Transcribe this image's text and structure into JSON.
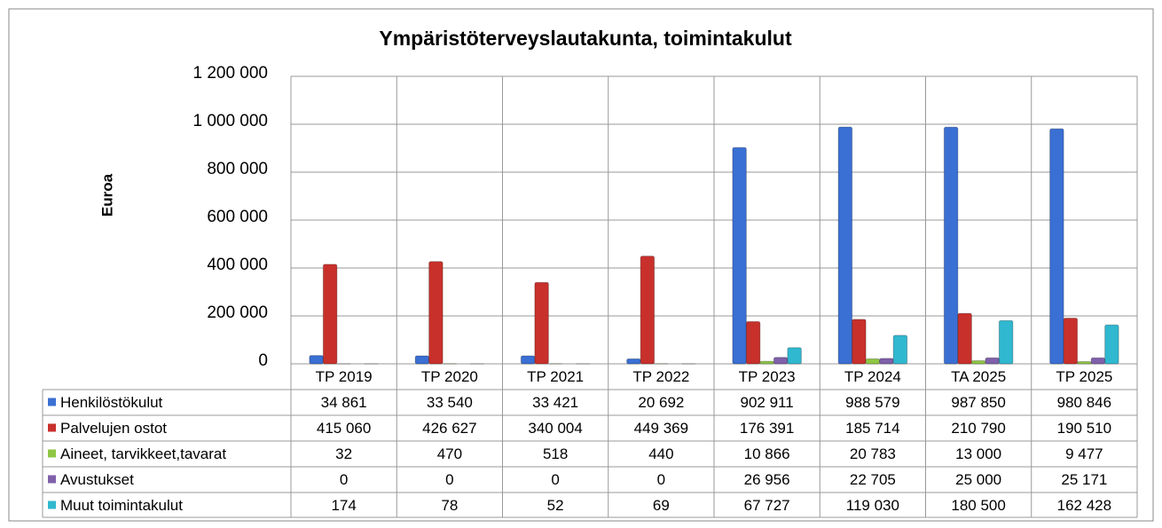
{
  "chart_data": {
    "type": "bar",
    "title": "Ympäristöterveyslautakunta, toimintakulut",
    "y_label": "Euroa",
    "categories": [
      "TP 2019",
      "TP 2020",
      "TP 2021",
      "TP 2022",
      "TP 2023",
      "TP 2024",
      "TA 2025",
      "TP 2025"
    ],
    "series": [
      {
        "name": "Henkilöstökulut",
        "color": "#3a6fd3",
        "values": [
          34861,
          33540,
          33421,
          20692,
          902911,
          988579,
          987850,
          980846
        ],
        "value_labels": [
          "34 861",
          "33 540",
          "33 421",
          "20 692",
          "902 911",
          "988 579",
          "987 850",
          "980 846"
        ]
      },
      {
        "name": "Palvelujen ostot",
        "color": "#c8302b",
        "values": [
          415060,
          426627,
          340004,
          449369,
          176391,
          185714,
          210790,
          190510
        ],
        "value_labels": [
          "415 060",
          "426 627",
          "340 004",
          "449 369",
          "176 391",
          "185 714",
          "210 790",
          "190 510"
        ]
      },
      {
        "name": "Aineet, tarvikkeet,tavarat",
        "color": "#8fc644",
        "values": [
          32,
          470,
          518,
          440,
          10866,
          20783,
          13000,
          9477
        ],
        "value_labels": [
          "32",
          "470",
          "518",
          "440",
          "10 866",
          "20 783",
          "13 000",
          "9 477"
        ]
      },
      {
        "name": "Avustukset",
        "color": "#7f60aa",
        "values": [
          0,
          0,
          0,
          0,
          26956,
          22705,
          25000,
          25171
        ],
        "value_labels": [
          "0",
          "0",
          "0",
          "0",
          "26 956",
          "22 705",
          "25 000",
          "25 171"
        ]
      },
      {
        "name": "Muut toimintakulut",
        "color": "#2fb8cf",
        "values": [
          174,
          78,
          52,
          69,
          67727,
          119030,
          180500,
          162428
        ],
        "value_labels": [
          "174",
          "78",
          "52",
          "69",
          "67 727",
          "119 030",
          "180 500",
          "162 428"
        ]
      }
    ],
    "ylim": [
      0,
      1200000
    ],
    "yticks": [
      0,
      {
        "value": 200000,
        "label": "200 000"
      },
      {
        "value": 400000,
        "label": "400 000"
      },
      {
        "value": 600000,
        "label": "600 000"
      },
      {
        "value": 800000,
        "label": "800 000"
      },
      {
        "value": 1000000,
        "label": "1 000 000"
      },
      {
        "value": 1200000,
        "label": "1 200 000"
      }
    ],
    "grid": true
  }
}
